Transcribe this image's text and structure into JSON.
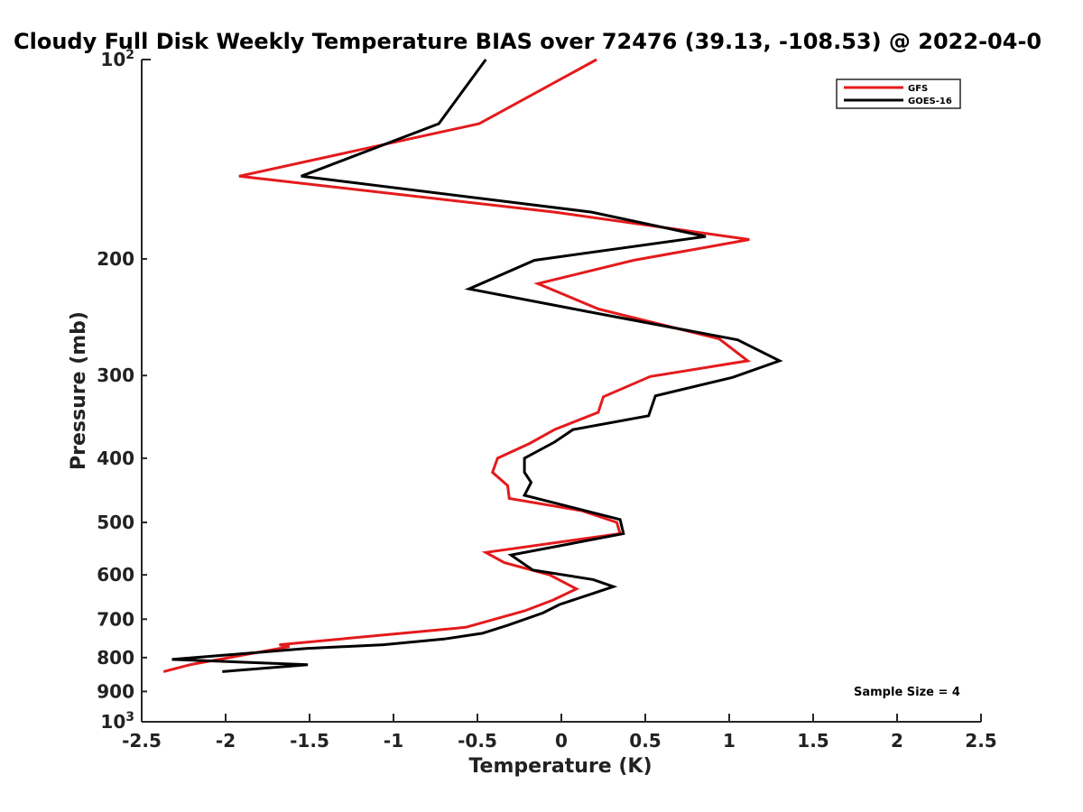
{
  "chart_data": {
    "type": "line",
    "title": "Cloudy Full Disk Weekly Temperature BIAS over 72476 (39.13, -108.53) @ 2022-04-0",
    "xlabel": "Temperature (K)",
    "ylabel": "Pressure (mb)",
    "xlim": [
      -2.5,
      2.5
    ],
    "ylim": [
      100,
      1000
    ],
    "y_scale": "log",
    "y_reversed": true,
    "x_ticks": [
      "-2.5",
      "-2",
      "-1.5",
      "-1",
      "-0.5",
      "0",
      "0.5",
      "1",
      "1.5",
      "2",
      "2.5"
    ],
    "x_tick_values": [
      -2.5,
      -2,
      -1.5,
      -1,
      -0.5,
      0,
      0.5,
      1,
      1.5,
      2,
      2.5
    ],
    "y_ticks": [
      {
        "value": 100,
        "base": "10",
        "exp": "2"
      },
      {
        "value": 200,
        "label": "200"
      },
      {
        "value": 300,
        "label": "300"
      },
      {
        "value": 400,
        "label": "400"
      },
      {
        "value": 500,
        "label": "500"
      },
      {
        "value": 600,
        "label": "600"
      },
      {
        "value": 700,
        "label": "700"
      },
      {
        "value": 800,
        "label": "800"
      },
      {
        "value": 900,
        "label": "900"
      },
      {
        "value": 1000,
        "base": "10",
        "exp": "3"
      }
    ],
    "legend_position": "top-right",
    "annotation": "Sample Size = 4",
    "series": [
      {
        "name": "GFS",
        "color": "#e41a1c",
        "points": [
          [
            0.21,
            100
          ],
          [
            -0.49,
            125
          ],
          [
            -1.92,
            150
          ],
          [
            -0.04,
            170
          ],
          [
            1.12,
            187
          ],
          [
            0.43,
            201
          ],
          [
            -0.14,
            218
          ],
          [
            0.22,
            238
          ],
          [
            0.94,
            264
          ],
          [
            1.11,
            285
          ],
          [
            0.53,
            301
          ],
          [
            0.25,
            323
          ],
          [
            0.22,
            341
          ],
          [
            -0.04,
            362
          ],
          [
            -0.19,
            380
          ],
          [
            -0.38,
            400
          ],
          [
            -0.41,
            420
          ],
          [
            -0.32,
            440
          ],
          [
            -0.31,
            460
          ],
          [
            0.12,
            480
          ],
          [
            0.33,
            500
          ],
          [
            0.35,
            520
          ],
          [
            -0.45,
            555
          ],
          [
            -0.34,
            575
          ],
          [
            -0.07,
            600
          ],
          [
            0.09,
            630
          ],
          [
            -0.05,
            655
          ],
          [
            -0.22,
            680
          ],
          [
            -0.57,
            720
          ],
          [
            -1.68,
            765
          ],
          [
            -1.62,
            770
          ],
          [
            -2.21,
            820
          ],
          [
            -2.37,
            840
          ]
        ]
      },
      {
        "name": "GOES-16",
        "color": "#000000",
        "points": [
          [
            -0.45,
            100
          ],
          [
            -0.73,
            125
          ],
          [
            -1.55,
            150
          ],
          [
            0.18,
            170
          ],
          [
            0.86,
            185
          ],
          [
            -0.16,
            201
          ],
          [
            -0.55,
            222
          ],
          [
            0.15,
            240
          ],
          [
            1.05,
            265
          ],
          [
            1.3,
            285
          ],
          [
            1.02,
            302
          ],
          [
            0.56,
            322
          ],
          [
            0.52,
            345
          ],
          [
            0.07,
            362
          ],
          [
            -0.04,
            378
          ],
          [
            -0.22,
            400
          ],
          [
            -0.22,
            420
          ],
          [
            -0.18,
            435
          ],
          [
            -0.22,
            455
          ],
          [
            0.35,
            495
          ],
          [
            0.37,
            520
          ],
          [
            -0.3,
            560
          ],
          [
            -0.17,
            590
          ],
          [
            0.19,
            610
          ],
          [
            0.31,
            625
          ],
          [
            0.19,
            640
          ],
          [
            -0.01,
            665
          ],
          [
            -0.11,
            685
          ],
          [
            -0.32,
            715
          ],
          [
            -0.47,
            735
          ],
          [
            -0.7,
            750
          ],
          [
            -1.06,
            765
          ],
          [
            -1.52,
            775
          ],
          [
            -2.32,
            805
          ],
          [
            -1.51,
            820
          ],
          [
            -2.02,
            840
          ]
        ]
      }
    ]
  }
}
